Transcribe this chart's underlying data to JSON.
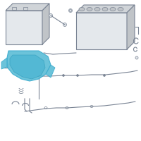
{
  "bg_color": "#ffffff",
  "highlight_color": "#5bbdd6",
  "line_color": "#9aa4b0",
  "dark_color": "#7a8494",
  "face_color": "#e4e8ec",
  "top_color": "#d0d4d8",
  "side_color": "#c0c4c8"
}
